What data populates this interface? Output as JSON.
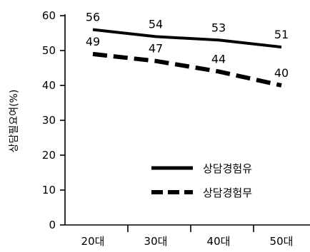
{
  "chart_data": {
    "type": "line",
    "title": "",
    "xlabel": "",
    "ylabel": "상담필요여(%)",
    "categories": [
      "20대",
      "30대",
      "40대",
      "50대"
    ],
    "ylim": [
      0,
      60
    ],
    "yticks": [
      0,
      10,
      20,
      30,
      40,
      50,
      60
    ],
    "grid": false,
    "legend_position": "bottom-right",
    "series": [
      {
        "name": "상담경험유",
        "values": [
          56,
          54,
          53,
          51
        ],
        "style": "solid",
        "color": "#000000"
      },
      {
        "name": "상담경험무",
        "values": [
          49,
          47,
          44,
          40
        ],
        "style": "dashed",
        "color": "#000000"
      }
    ]
  }
}
